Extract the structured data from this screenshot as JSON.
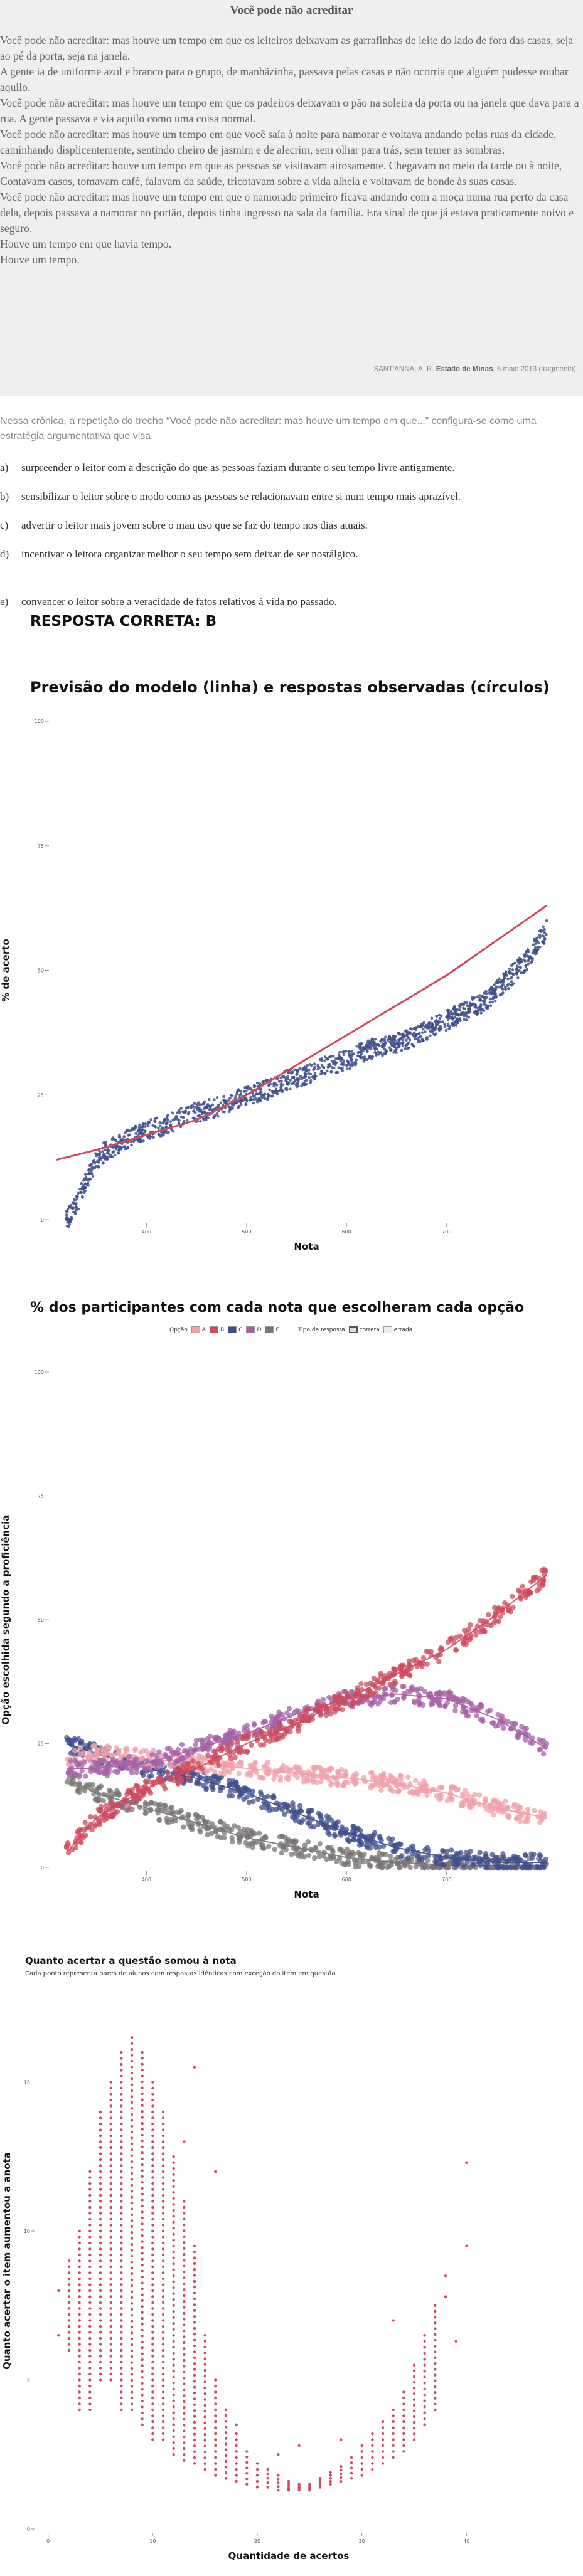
{
  "text": {
    "title": "Você pode não acreditar",
    "paragraphs": [
      "Você pode não acreditar: mas houve um tempo em que os leiteiros deixavam as garrafinhas de leite do lado de fora das casas, seja ao pé da porta, seja na janela.",
      "A gente ia de uniforme azul e branco para o grupo, de manhãzinha, passava pelas casas e não ocorria que alguém pudesse roubar aquilo.",
      "Você pode não acreditar: mas houve um tempo em que os padeiros deixavam o pão na soleira da porta ou na janela que dava para a rua. A gente passava e via aquilo como uma coisa normal.",
      "Você pode não acreditar: mas houve um tempo em que você saía à noite para namorar e voltava andando pelas ruas da cidade, caminhando displicentemente, sentindo cheiro de jasmim e de alecrim, sem olhar para trás, sem temer as sombras.",
      "Você pode não acreditar: houve um tempo em que as pessoas se visitavam airosamente. Chegavam no meio da tarde ou à noite, Contavam casos, tomavam café, falavam da saúde, tricotavam sobre a vida alheia e voltavam de bonde às suas casas.",
      "Você pode não acreditar: mas houve um tempo em que o namorado primeiro ficava andando com a moça numa rua perto da casa dela, depois passava a namorar no portão, depois tinha ingresso na sala da família. Era sinal de que já estava praticamente noivo e seguro.",
      "Houve um tempo em que havia tempo.",
      "Houve um tempo."
    ],
    "source_prefix": "SANT'ANNA, A. R.",
    "source_bold": "Estado de Minas",
    "source_suffix": ". 5 maio 2013 (fragmento)."
  },
  "question": {
    "stem": "Nessa crônica, a repetição do trecho “Você pode não acreditar: mas houve um tempo em que...” configura-se como uma estratégia argumentativa que visa",
    "options": [
      {
        "letter": "a)",
        "text": "surpreender o leitor com a descrição do que as pessoas faziam durante o seu tempo livre antigamente."
      },
      {
        "letter": "b)",
        "text": "sensibilizar o leitor sobre o modo como as pessoas se relacionavam entre si num tempo mais aprazível."
      },
      {
        "letter": "c)",
        "text": "advertir o leitor mais jovem sobre o mau uso que se faz do tempo nos dias atuais."
      },
      {
        "letter": "d)",
        "text": "incentivar o leitora organizar melhor o seu tempo sem deixar de ser nostálgico."
      },
      {
        "letter": "e)",
        "text": "convencer o leitor sobre a veracidade de fatos relativos à vida no passado."
      }
    ],
    "answer": "RESPOSTA CORRETA: B"
  },
  "chart_data": [
    {
      "type": "scatter",
      "title": "Previsão do modelo (linha) e respostas observadas (círculos)",
      "xlabel": "Nota",
      "ylabel": "% de acerto",
      "xlim": [
        305,
        815
      ],
      "ylim": [
        0,
        100
      ],
      "x_ticks": [
        400,
        500,
        600,
        700
      ],
      "y_ticks": [
        0,
        25,
        50,
        75,
        100
      ],
      "colors": {
        "points": "#3f4f8c",
        "line": "#d04a5a"
      },
      "model_line": {
        "x": [
          310,
          350,
          400,
          450,
          500,
          550,
          600,
          650,
          700,
          750,
          800
        ],
        "y": [
          12,
          14,
          17,
          20,
          25,
          31,
          37,
          43,
          49,
          56,
          63
        ]
      },
      "observed": {
        "x": [
          320,
          330,
          340,
          350,
          360,
          370,
          380,
          400,
          420,
          440,
          460,
          480,
          500,
          520,
          540,
          560,
          580,
          600,
          620,
          640,
          660,
          680,
          700,
          720,
          740,
          760,
          780,
          800
        ],
        "y": [
          0,
          3,
          8,
          12,
          14,
          15,
          16,
          18,
          19,
          21,
          22,
          23,
          25,
          26,
          28,
          29,
          31,
          32,
          34,
          35,
          36,
          38,
          40,
          42,
          44,
          48,
          52,
          58
        ]
      }
    },
    {
      "type": "scatter",
      "title": "% dos participantes com cada nota que escolheram cada opção",
      "xlabel": "Nota",
      "ylabel": "Opção escolhida segundo a proficiência",
      "xlim": [
        305,
        815
      ],
      "ylim": [
        0,
        100
      ],
      "x_ticks": [
        400,
        500,
        600,
        700
      ],
      "y_ticks": [
        0,
        25,
        50,
        75,
        100
      ],
      "legend_option_label": "Opção",
      "legend_type_label": "Tipo de resposta",
      "legend_type_values": [
        "correta",
        "errada"
      ],
      "x": [
        320,
        350,
        400,
        450,
        500,
        550,
        600,
        650,
        700,
        750,
        800
      ],
      "series": [
        {
          "name": "A",
          "color": "#f0a0aa",
          "values": [
            22,
            23,
            22,
            21,
            20,
            19,
            18,
            17,
            15,
            12,
            10
          ]
        },
        {
          "name": "B",
          "color": "#cf4a5d",
          "values": [
            3,
            10,
            16,
            20,
            25,
            29,
            34,
            39,
            44,
            51,
            59
          ]
        },
        {
          "name": "C",
          "color": "#3f4f8c",
          "values": [
            25,
            23,
            20,
            18,
            15,
            11,
            7,
            4,
            2,
            1,
            1
          ]
        },
        {
          "name": "D",
          "color": "#a561a6",
          "values": [
            20,
            20,
            21,
            24,
            27,
            31,
            34,
            35,
            34,
            30,
            24
          ]
        },
        {
          "name": "E",
          "color": "#7a7676",
          "values": [
            18,
            15,
            12,
            9,
            6,
            4,
            2,
            1,
            0.5,
            0.3,
            0.2
          ]
        }
      ]
    },
    {
      "type": "scatter",
      "title": "Quanto acertar a questão somou à nota",
      "subtitle": "Cada ponto representa pares de alunos com respostas idênticas com exceção do item em questão",
      "xlabel": "Quantidade de acertos",
      "ylabel": "Quanto acertar o item aumentou a anota",
      "xlim": [
        -1,
        47
      ],
      "ylim": [
        0,
        18
      ],
      "x_ticks": [
        0,
        10,
        20,
        30,
        40
      ],
      "y_ticks": [
        0,
        5,
        10,
        15
      ],
      "color": "#cf4a5d",
      "columns": [
        {
          "x": 2,
          "ymin": 6,
          "ymax": 9
        },
        {
          "x": 3,
          "ymin": 4,
          "ymax": 10
        },
        {
          "x": 4,
          "ymin": 4,
          "ymax": 12
        },
        {
          "x": 5,
          "ymin": 5,
          "ymax": 14
        },
        {
          "x": 6,
          "ymin": 5,
          "ymax": 15
        },
        {
          "x": 7,
          "ymin": 4,
          "ymax": 16
        },
        {
          "x": 8,
          "ymin": 4,
          "ymax": 16.5
        },
        {
          "x": 9,
          "ymin": 3.5,
          "ymax": 16
        },
        {
          "x": 10,
          "ymin": 3,
          "ymax": 15
        },
        {
          "x": 11,
          "ymin": 3,
          "ymax": 14
        },
        {
          "x": 12,
          "ymin": 2.5,
          "ymax": 12.5
        },
        {
          "x": 13,
          "ymin": 2.3,
          "ymax": 11
        },
        {
          "x": 14,
          "ymin": 2.2,
          "ymax": 9.5
        },
        {
          "x": 15,
          "ymin": 2,
          "ymax": 6.5
        },
        {
          "x": 16,
          "ymin": 1.8,
          "ymax": 5
        },
        {
          "x": 17,
          "ymin": 1.7,
          "ymax": 4
        },
        {
          "x": 18,
          "ymin": 1.6,
          "ymax": 3.2
        },
        {
          "x": 19,
          "ymin": 1.5,
          "ymax": 2.6
        },
        {
          "x": 20,
          "ymin": 1.4,
          "ymax": 2.2
        },
        {
          "x": 21,
          "ymin": 1.4,
          "ymax": 2
        },
        {
          "x": 22,
          "ymin": 1.3,
          "ymax": 1.8
        },
        {
          "x": 23,
          "ymin": 1.3,
          "ymax": 1.6
        },
        {
          "x": 24,
          "ymin": 1.3,
          "ymax": 1.5
        },
        {
          "x": 25,
          "ymin": 1.3,
          "ymax": 1.5
        },
        {
          "x": 26,
          "ymin": 1.4,
          "ymax": 1.7
        },
        {
          "x": 27,
          "ymin": 1.5,
          "ymax": 1.9
        },
        {
          "x": 28,
          "ymin": 1.6,
          "ymax": 2.1
        },
        {
          "x": 29,
          "ymin": 1.7,
          "ymax": 2.4
        },
        {
          "x": 30,
          "ymin": 1.8,
          "ymax": 2.8
        },
        {
          "x": 31,
          "ymin": 2,
          "ymax": 3.2
        },
        {
          "x": 32,
          "ymin": 2.2,
          "ymax": 3.6
        },
        {
          "x": 33,
          "ymin": 2.4,
          "ymax": 4
        },
        {
          "x": 34,
          "ymin": 2.6,
          "ymax": 4.6
        },
        {
          "x": 35,
          "ymin": 3,
          "ymax": 5.5
        },
        {
          "x": 36,
          "ymin": 3.5,
          "ymax": 6.5
        },
        {
          "x": 37,
          "ymin": 4,
          "ymax": 7.5
        }
      ],
      "outliers": [
        {
          "x": 1,
          "y": 8
        },
        {
          "x": 1,
          "y": 6.5
        },
        {
          "x": 13,
          "y": 13
        },
        {
          "x": 14,
          "y": 15.5
        },
        {
          "x": 16,
          "y": 12
        },
        {
          "x": 18,
          "y": 3.5
        },
        {
          "x": 22,
          "y": 2.5
        },
        {
          "x": 24,
          "y": 2.8
        },
        {
          "x": 28,
          "y": 3
        },
        {
          "x": 33,
          "y": 7
        },
        {
          "x": 38,
          "y": 8.5
        },
        {
          "x": 38,
          "y": 7.8
        },
        {
          "x": 40,
          "y": 9.5
        },
        {
          "x": 40,
          "y": 12.3
        },
        {
          "x": 39,
          "y": 6.3
        }
      ]
    }
  ]
}
